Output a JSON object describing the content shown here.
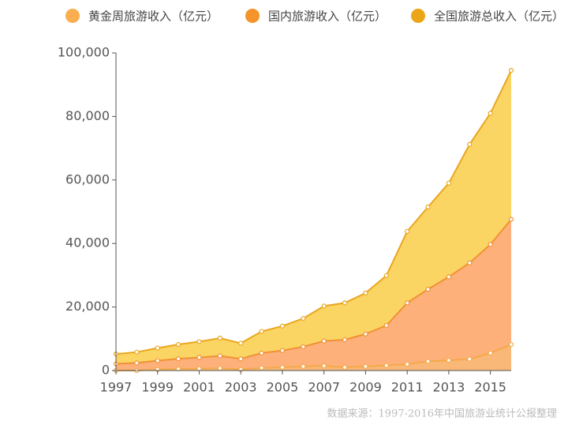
{
  "chart_data": {
    "type": "stacked-area",
    "source": "数据来源：1997-2016年中国旅游业统计公报整理",
    "x": [
      1997,
      1998,
      1999,
      2000,
      2001,
      2002,
      2003,
      2004,
      2005,
      2006,
      2007,
      2008,
      2009,
      2010,
      2011,
      2012,
      2013,
      2014,
      2015,
      2016
    ],
    "xlim": [
      1997,
      2016
    ],
    "xticks": [
      1997,
      1999,
      2001,
      2003,
      2005,
      2007,
      2009,
      2011,
      2013,
      2015
    ],
    "ylim": [
      0,
      100000
    ],
    "yticks": [
      0,
      {
        "value": 20000,
        "label": "20,000"
      },
      {
        "value": 40000,
        "label": "40,000"
      },
      {
        "value": 60000,
        "label": "60,000"
      },
      {
        "value": 80000,
        "label": "80,000"
      },
      {
        "value": 100000,
        "label": "100,000"
      }
    ],
    "series": [
      {
        "name": "黄金周旅游收入（亿元）",
        "color": "#f4a94a",
        "fill": "#f9b877",
        "legend_color": "#f9ae4f",
        "values": [
          0,
          0,
          300,
          500,
          600,
          700,
          300,
          800,
          1000,
          1300,
          1500,
          1000,
          1300,
          1600,
          2000,
          2900,
          3200,
          3600,
          5500,
          8200
        ]
      },
      {
        "name": "国内旅游收入（亿元）",
        "color": "#f09236",
        "fill": "#fdb07a",
        "legend_color": "#f4942a",
        "values": [
          2100,
          2400,
          2800,
          3200,
          3500,
          3900,
          3400,
          4700,
          5300,
          6200,
          7800,
          8700,
          10200,
          12600,
          19300,
          22700,
          26300,
          30300,
          34200,
          39400
        ]
      },
      {
        "name": "全国旅游总收入（亿元）",
        "color": "#e8a620",
        "fill": "#fbd563",
        "legend_color": "#eaa617",
        "values": [
          3100,
          3400,
          4000,
          4500,
          5000,
          5600,
          4900,
          6800,
          7700,
          8900,
          11000,
          11600,
          12900,
          15700,
          22500,
          25900,
          29500,
          37300,
          41300,
          46900
        ]
      }
    ]
  }
}
